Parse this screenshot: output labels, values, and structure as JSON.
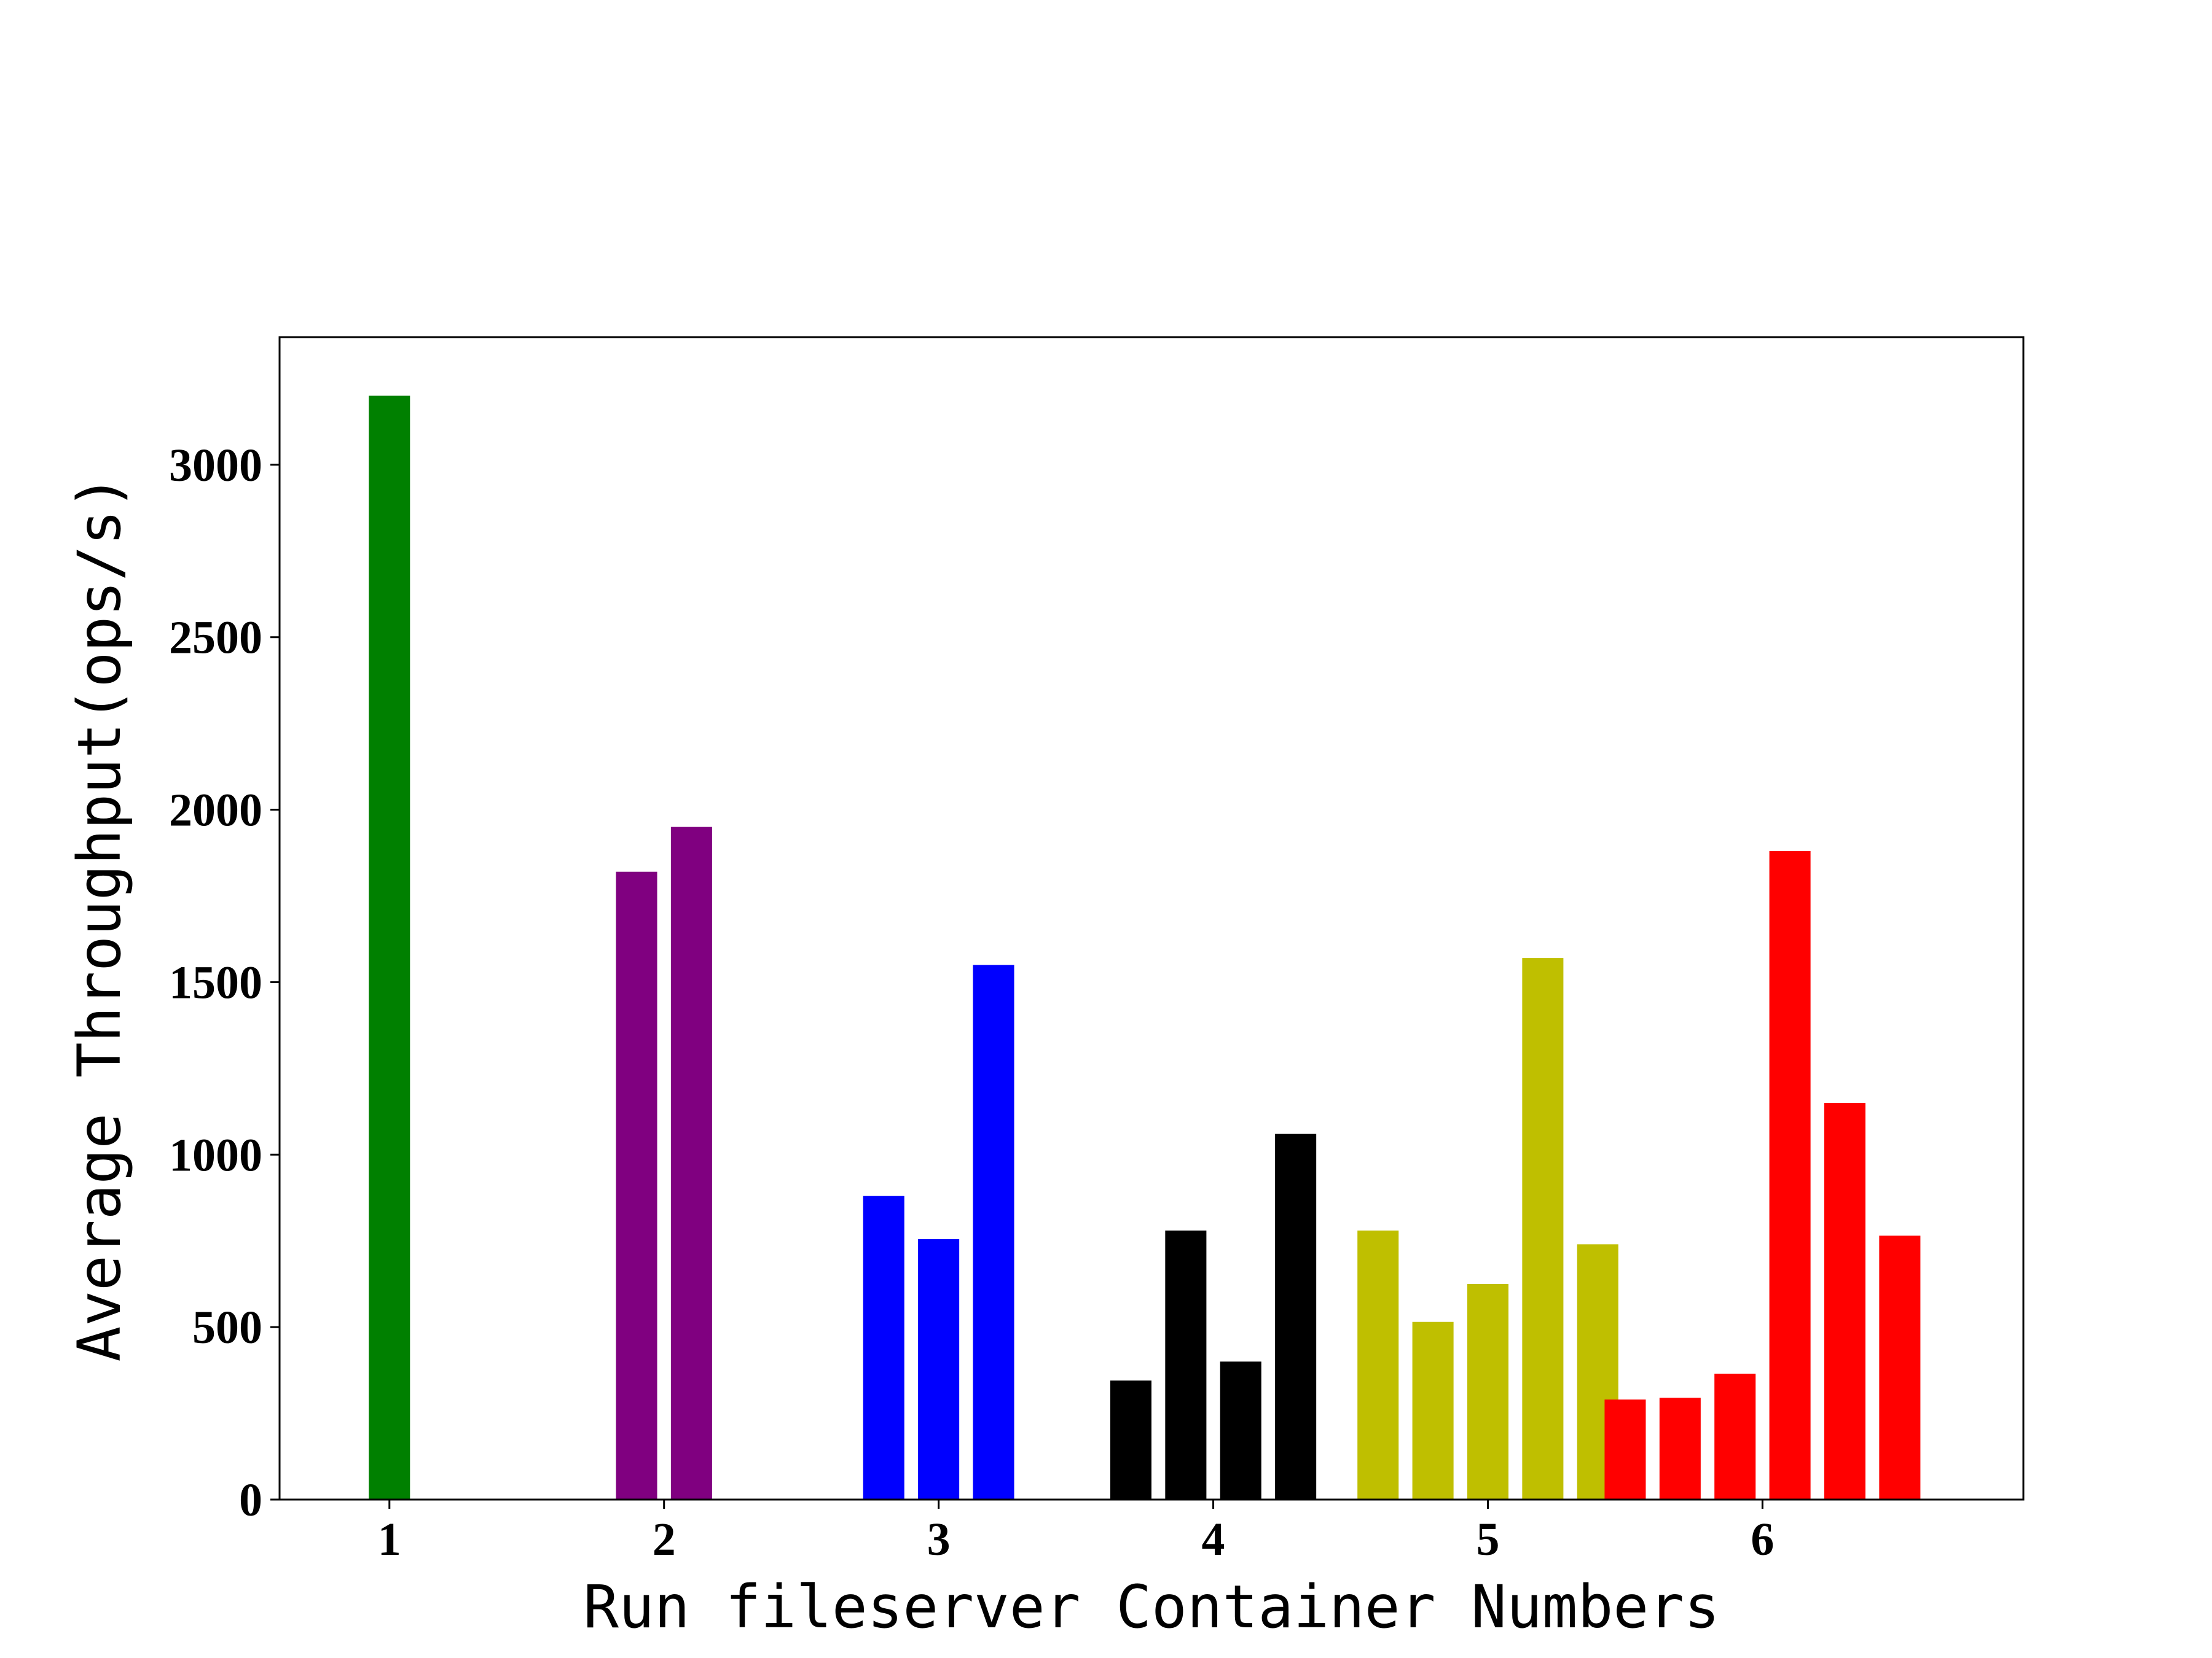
{
  "chart_data": {
    "type": "bar",
    "title": "",
    "xlabel": "Run fileserver Container Numbers",
    "ylabel": "Average Throughput(ops/s)",
    "xlim": [
      0.6,
      6.95
    ],
    "ylim": [
      0,
      3370
    ],
    "x_ticks": [
      1,
      2,
      3,
      4,
      5,
      6
    ],
    "y_ticks": [
      0,
      500,
      1000,
      1500,
      2000,
      2500,
      3000
    ],
    "grid": false,
    "legend": "none",
    "groups": [
      {
        "category": "1",
        "color": "#008000",
        "bars": [
          {
            "x": 1.0,
            "value": 3200
          }
        ]
      },
      {
        "category": "2",
        "color": "#800080",
        "bars": [
          {
            "x": 1.9,
            "value": 1820
          },
          {
            "x": 2.1,
            "value": 1950
          }
        ]
      },
      {
        "category": "3",
        "color": "#0000ff",
        "bars": [
          {
            "x": 2.8,
            "value": 880
          },
          {
            "x": 3.0,
            "value": 755
          },
          {
            "x": 3.2,
            "value": 1550
          }
        ]
      },
      {
        "category": "4",
        "color": "#000000",
        "bars": [
          {
            "x": 3.7,
            "value": 345
          },
          {
            "x": 3.9,
            "value": 780
          },
          {
            "x": 4.1,
            "value": 400
          },
          {
            "x": 4.3,
            "value": 1060
          }
        ]
      },
      {
        "category": "5",
        "color": "#bfbf00",
        "bars": [
          {
            "x": 4.6,
            "value": 780
          },
          {
            "x": 4.8,
            "value": 515
          },
          {
            "x": 5.0,
            "value": 625
          },
          {
            "x": 5.2,
            "value": 1570
          },
          {
            "x": 5.4,
            "value": 740
          }
        ]
      },
      {
        "category": "6",
        "color": "#ff0000",
        "bars": [
          {
            "x": 5.5,
            "value": 290
          },
          {
            "x": 5.7,
            "value": 295
          },
          {
            "x": 5.9,
            "value": 365
          },
          {
            "x": 6.1,
            "value": 1880
          },
          {
            "x": 6.3,
            "value": 1150
          },
          {
            "x": 6.5,
            "value": 765
          }
        ]
      }
    ]
  }
}
